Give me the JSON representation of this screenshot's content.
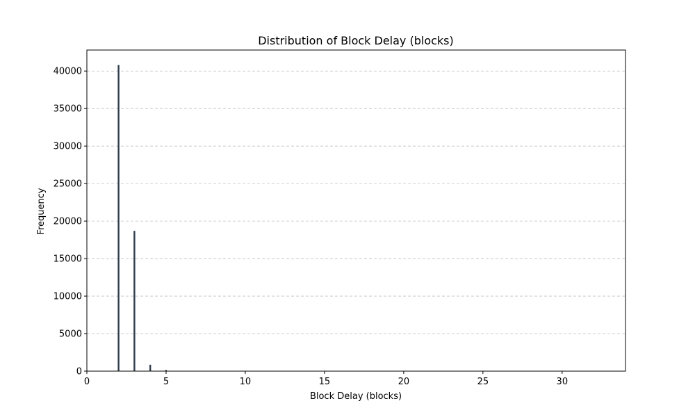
{
  "chart_data": {
    "type": "bar",
    "title": "Distribution of Block Delay (blocks)",
    "xlabel": "Block Delay (blocks)",
    "ylabel": "Frequency",
    "xlim": [
      0,
      34
    ],
    "ylim": [
      0,
      42800
    ],
    "xticks": [
      0,
      5,
      10,
      15,
      20,
      25,
      30
    ],
    "yticks": [
      0,
      5000,
      10000,
      15000,
      20000,
      25000,
      30000,
      35000,
      40000
    ],
    "grid": "y-dashed",
    "bar_color": "#2f3e4e",
    "x": [
      2,
      3,
      4,
      5,
      6
    ],
    "values": [
      40800,
      18700,
      850,
      150,
      40
    ]
  }
}
